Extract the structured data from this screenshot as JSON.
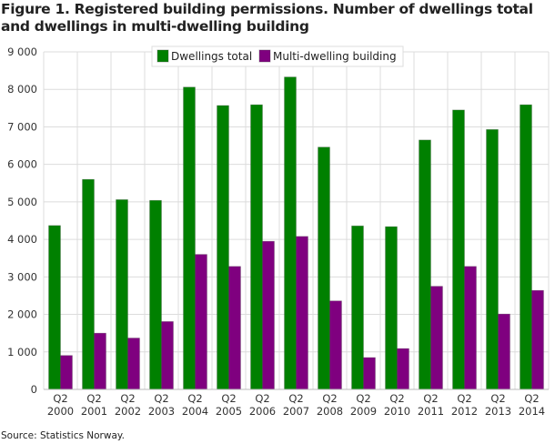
{
  "chart_data": {
    "type": "bar",
    "title": "Figure 1. Registered building permissions. Number of dwellings total and dwellings in multi-dwelling building",
    "xlabel": "",
    "ylabel": "",
    "ylim": [
      0,
      9000
    ],
    "yticks": [
      "0",
      "1 000",
      "2 000",
      "3 000",
      "4 000",
      "5 000",
      "6 000",
      "7 000",
      "8 000",
      "9 000"
    ],
    "ytick_values": [
      0,
      1000,
      2000,
      3000,
      4000,
      5000,
      6000,
      7000,
      8000,
      9000
    ],
    "grid": true,
    "legend_position": "top-center",
    "categories": [
      [
        "Q2",
        "2000"
      ],
      [
        "Q2",
        "2001"
      ],
      [
        "Q2",
        "2002"
      ],
      [
        "Q2",
        "2003"
      ],
      [
        "Q2",
        "2004"
      ],
      [
        "Q2",
        "2005"
      ],
      [
        "Q2",
        "2006"
      ],
      [
        "Q2",
        "2007"
      ],
      [
        "Q2",
        "2008"
      ],
      [
        "Q2",
        "2009"
      ],
      [
        "Q2",
        "2010"
      ],
      [
        "Q2",
        "2011"
      ],
      [
        "Q2",
        "2012"
      ],
      [
        "Q2",
        "2013"
      ],
      [
        "Q2",
        "2014"
      ]
    ],
    "series": [
      {
        "name": "Dwellings total",
        "color": "#008000",
        "values": [
          4370,
          5600,
          5060,
          5040,
          8060,
          7570,
          7590,
          8330,
          6460,
          4360,
          4340,
          6650,
          7450,
          6930,
          7590
        ]
      },
      {
        "name": "Multi-dwelling building",
        "color": "#7f007f",
        "values": [
          905,
          1500,
          1370,
          1810,
          3600,
          3280,
          3950,
          4080,
          2360,
          850,
          1090,
          2750,
          3280,
          2010,
          2640
        ]
      }
    ]
  },
  "source": "Source: Statistics Norway."
}
